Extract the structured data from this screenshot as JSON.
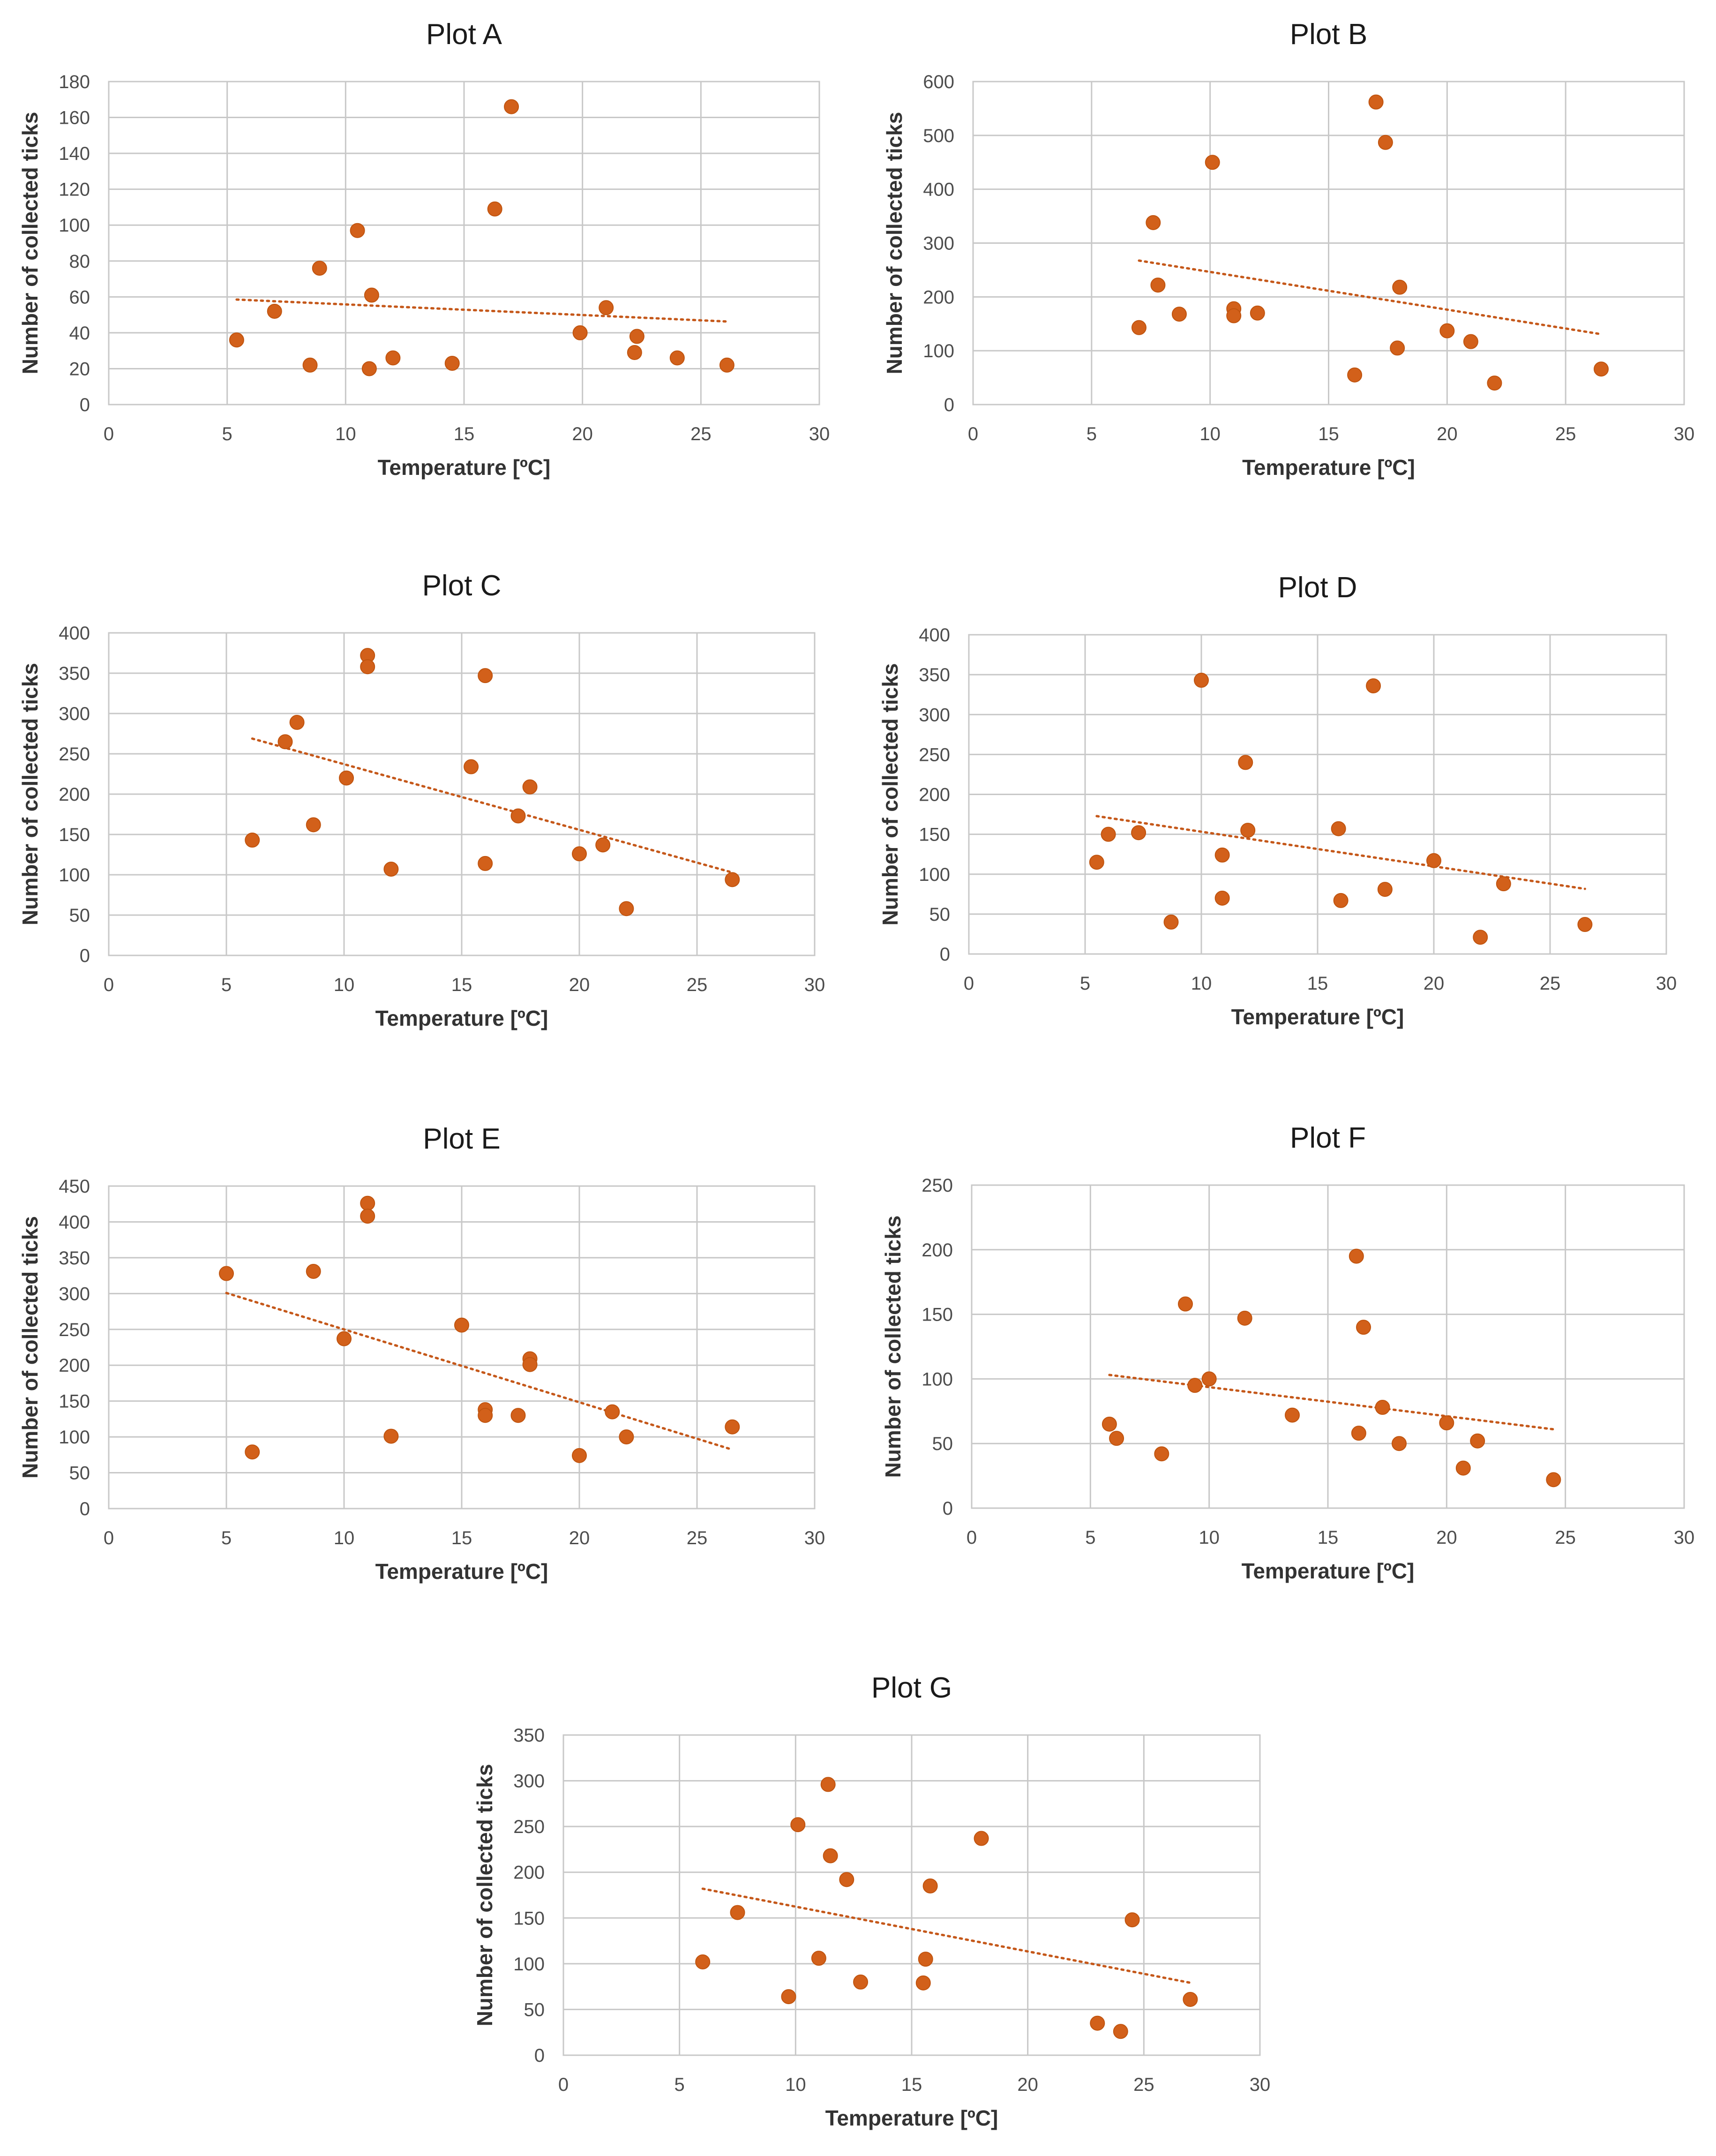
{
  "colors": {
    "marker": "#d2601a",
    "trendline": "#c5581a",
    "grid": "#c8c8c8",
    "text": "#333333"
  },
  "chart_data": [
    {
      "type": "scatter",
      "title": "Plot A",
      "xlabel": "Temperature [ºC]",
      "ylabel": "Number of collected ticks",
      "xlim": [
        0,
        30
      ],
      "ylim": [
        0,
        180
      ],
      "xstep": 5,
      "ystep": 20,
      "x_ticks": [
        "0",
        "5",
        "10",
        "15",
        "20",
        "25",
        "30"
      ],
      "y_ticks": [
        "0",
        "20",
        "40",
        "60",
        "80",
        "100",
        "120",
        "140",
        "160",
        "180"
      ],
      "grid": true,
      "trendline": "linear",
      "x": [
        5.4,
        7.0,
        8.5,
        8.9,
        10.5,
        11.0,
        11.1,
        12.0,
        14.5,
        16.3,
        17.0,
        19.9,
        21.0,
        22.2,
        22.3,
        24.0,
        26.1
      ],
      "y": [
        36,
        52,
        22,
        76,
        97,
        20,
        61,
        26,
        23,
        109,
        166,
        40,
        54,
        29,
        38,
        26,
        22
      ]
    },
    {
      "type": "scatter",
      "title": "Plot B",
      "xlabel": "Temperature [ºC]",
      "ylabel": "Number of collected ticks",
      "xlim": [
        0,
        30
      ],
      "ylim": [
        0,
        600
      ],
      "xstep": 5,
      "ystep": 100,
      "x_ticks": [
        "0",
        "5",
        "10",
        "15",
        "20",
        "25",
        "30"
      ],
      "y_ticks": [
        "0",
        "100",
        "200",
        "300",
        "400",
        "500",
        "600"
      ],
      "grid": true,
      "trendline": "linear",
      "x": [
        7.0,
        7.6,
        7.8,
        8.7,
        10.1,
        11.0,
        11.0,
        12.0,
        16.1,
        17.0,
        17.4,
        17.9,
        18.0,
        20.0,
        21.0,
        22.0,
        26.5
      ],
      "y": [
        143,
        338,
        222,
        168,
        450,
        178,
        165,
        170,
        55,
        562,
        487,
        105,
        218,
        137,
        117,
        40,
        66
      ]
    },
    {
      "type": "scatter",
      "title": "Plot C",
      "xlabel": "Temperature [ºC]",
      "ylabel": "Number of collected ticks",
      "xlim": [
        0,
        30
      ],
      "ylim": [
        0,
        400
      ],
      "xstep": 5,
      "ystep": 50,
      "x_ticks": [
        "0",
        "5",
        "10",
        "15",
        "20",
        "25",
        "30"
      ],
      "y_ticks": [
        "0",
        "50",
        "100",
        "150",
        "200",
        "250",
        "300",
        "350",
        "400"
      ],
      "grid": true,
      "trendline": "linear",
      "x": [
        6.1,
        7.5,
        8.0,
        8.7,
        10.1,
        11.0,
        11.0,
        12.0,
        15.4,
        16.0,
        16.0,
        17.4,
        17.9,
        20.0,
        21.0,
        22.0,
        26.5
      ],
      "y": [
        143,
        265,
        289,
        162,
        220,
        372,
        358,
        107,
        234,
        347,
        114,
        173,
        209,
        126,
        137,
        58,
        94
      ]
    },
    {
      "type": "scatter",
      "title": "Plot D",
      "xlabel": "Temperature [ºC]",
      "ylabel": "Number of collected ticks",
      "xlim": [
        0,
        30
      ],
      "ylim": [
        0,
        400
      ],
      "xstep": 5,
      "ystep": 50,
      "x_ticks": [
        "0",
        "5",
        "10",
        "15",
        "20",
        "25",
        "30"
      ],
      "y_ticks": [
        "0",
        "50",
        "100",
        "150",
        "200",
        "250",
        "300",
        "350",
        "400"
      ],
      "grid": true,
      "trendline": "linear",
      "x": [
        5.5,
        6.0,
        7.3,
        8.7,
        10.0,
        10.9,
        10.9,
        11.9,
        12.0,
        15.9,
        16.0,
        17.4,
        17.9,
        20.0,
        22.0,
        23.0,
        26.5
      ],
      "y": [
        115,
        150,
        152,
        40,
        343,
        124,
        70,
        240,
        155,
        157,
        67,
        336,
        81,
        117,
        21,
        88,
        37
      ]
    },
    {
      "type": "scatter",
      "title": "Plot E",
      "xlabel": "Temperature [ºC]",
      "ylabel": "Number of collected ticks",
      "xlim": [
        0,
        30
      ],
      "ylim": [
        0,
        450
      ],
      "xstep": 5,
      "ystep": 50,
      "x_ticks": [
        "0",
        "5",
        "10",
        "15",
        "20",
        "25",
        "30"
      ],
      "y_ticks": [
        "0",
        "50",
        "100",
        "150",
        "200",
        "250",
        "300",
        "350",
        "400",
        "450"
      ],
      "grid": true,
      "trendline": "linear",
      "x": [
        5.0,
        6.1,
        8.7,
        10.0,
        11.0,
        11.0,
        12.0,
        15.0,
        16.0,
        16.0,
        17.4,
        17.9,
        17.9,
        20.0,
        21.4,
        22.0,
        26.5
      ],
      "y": [
        328,
        79,
        331,
        237,
        426,
        408,
        101,
        256,
        138,
        130,
        130,
        209,
        201,
        74,
        135,
        100,
        114
      ]
    },
    {
      "type": "scatter",
      "title": "Plot F",
      "xlabel": "Temperature [ºC]",
      "ylabel": "Number of collected ticks",
      "xlim": [
        0,
        30
      ],
      "ylim": [
        0,
        250
      ],
      "xstep": 5,
      "ystep": 50,
      "x_ticks": [
        "0",
        "5",
        "10",
        "15",
        "20",
        "25",
        "30"
      ],
      "y_ticks": [
        "0",
        "50",
        "100",
        "150",
        "200",
        "250"
      ],
      "grid": true,
      "trendline": "linear",
      "x": [
        5.8,
        6.1,
        8.0,
        9.0,
        9.4,
        10.0,
        11.5,
        13.5,
        16.2,
        16.3,
        16.5,
        17.3,
        18.0,
        20.0,
        20.7,
        21.3,
        24.5
      ],
      "y": [
        65,
        54,
        42,
        158,
        95,
        100,
        147,
        72,
        195,
        58,
        140,
        78,
        50,
        66,
        31,
        52,
        22
      ]
    },
    {
      "type": "scatter",
      "title": "Plot G",
      "xlabel": "Temperature [ºC]",
      "ylabel": "Number of collected ticks",
      "xlim": [
        0,
        30
      ],
      "ylim": [
        0,
        350
      ],
      "xstep": 5,
      "ystep": 50,
      "x_ticks": [
        "0",
        "5",
        "10",
        "15",
        "20",
        "25",
        "30"
      ],
      "y_ticks": [
        "0",
        "50",
        "100",
        "150",
        "200",
        "250",
        "300",
        "350"
      ],
      "grid": true,
      "trendline": "linear",
      "x": [
        6.0,
        7.5,
        9.7,
        10.1,
        11.0,
        11.4,
        11.5,
        12.2,
        12.8,
        15.5,
        15.6,
        15.8,
        18.0,
        23.0,
        24.0,
        24.5,
        27.0
      ],
      "y": [
        102,
        156,
        64,
        252,
        106,
        296,
        218,
        192,
        80,
        79,
        105,
        185,
        237,
        35,
        26,
        148,
        61
      ]
    }
  ]
}
